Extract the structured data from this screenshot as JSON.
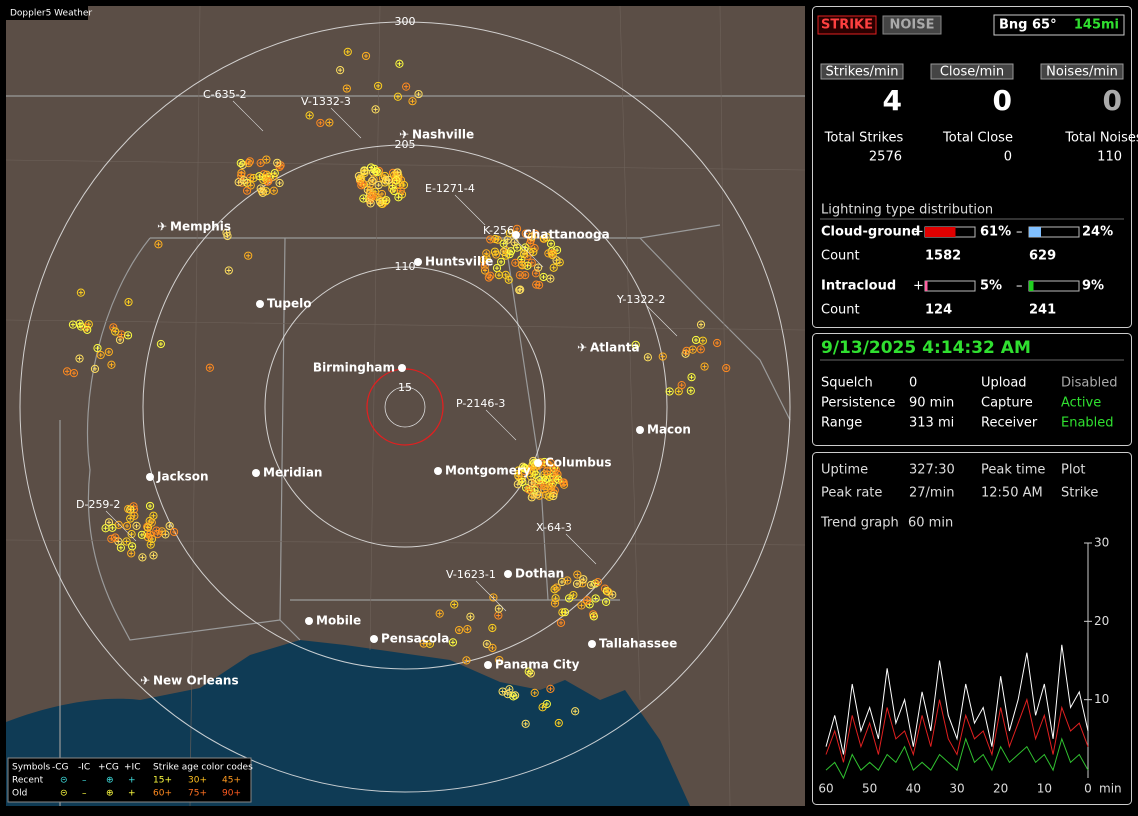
{
  "map": {
    "brand": "Doppler5 Weather",
    "rings": [
      "300",
      "205",
      "110",
      "15"
    ],
    "cities": [
      "Nashville",
      "Memphis",
      "Chattanooga",
      "Huntsville",
      "Tupelo",
      "Atlanta",
      "Birmingham",
      "Macon",
      "Columbus",
      "Jackson",
      "Meridian",
      "Montgomery",
      "Dothan",
      "Mobile",
      "Pensacola",
      "Tallahassee",
      "Panama City",
      "New Orleans"
    ],
    "storms": [
      "C-635-2",
      "V-1332-3",
      "E-1271-4",
      "K-256",
      "Y-1322-2",
      "P-2146-3",
      "X-64-3",
      "V-1623-1",
      "D-259-2"
    ],
    "legend": {
      "symbols": "Symbols",
      "types": [
        "-CG",
        "-IC",
        "+CG",
        "+IC"
      ],
      "age_title": "Strike age color codes",
      "recent": "Recent",
      "old": "Old",
      "recent_ages": [
        "15+",
        "30+",
        "45+"
      ],
      "old_ages": [
        "60+",
        "75+",
        "90+"
      ]
    }
  },
  "status": {
    "strike": "STRIKE",
    "noise": "NOISE",
    "bearing": "Bng 65°",
    "distance": "145mi",
    "rates": [
      {
        "label": "Strikes/min",
        "value": "4",
        "total_label": "Total Strikes",
        "total": "2576"
      },
      {
        "label": "Close/min",
        "value": "0",
        "total_label": "Total Close",
        "total": "0"
      },
      {
        "label": "Noises/min",
        "value": "0",
        "total_label": "Total Noises",
        "total": "110"
      }
    ],
    "distribution": {
      "title": "Lightning type distribution",
      "rows": [
        {
          "label": "Cloud-ground",
          "pos_sign": "+",
          "pos": {
            "value": 61,
            "label": "61%"
          },
          "neg_sign": "–",
          "neg": {
            "value": 24,
            "label": "24%"
          },
          "count_label": "Count",
          "pos_count": "1582",
          "neg_count": "629"
        },
        {
          "label": "Intracloud",
          "pos_sign": "+",
          "pos": {
            "value": 5,
            "label": "5%"
          },
          "neg_sign": "–",
          "neg": {
            "value": 9,
            "label": "9%"
          },
          "count_label": "Count",
          "pos_count": "124",
          "neg_count": "241"
        }
      ]
    }
  },
  "clock": {
    "datetime": "9/13/2025 4:14:32 AM",
    "rows": [
      [
        "Squelch",
        "0",
        "Upload",
        "Disabled"
      ],
      [
        "Persistence",
        "90 min",
        "Capture",
        "Active"
      ],
      [
        "Range",
        "313 mi",
        "Receiver",
        "Enabled"
      ]
    ]
  },
  "stats": {
    "rows": [
      [
        "Uptime",
        "327:30",
        "Peak time",
        "Plot"
      ],
      [
        "Peak rate",
        "27/min",
        "12:50 AM",
        "Strike"
      ]
    ],
    "trend_label": "Trend graph",
    "trend_span": "60 min"
  },
  "chart_data": {
    "type": "line",
    "x_label": "min",
    "x": [
      60,
      58,
      56,
      54,
      52,
      50,
      48,
      46,
      44,
      42,
      40,
      38,
      36,
      34,
      32,
      30,
      28,
      26,
      24,
      22,
      20,
      18,
      16,
      14,
      12,
      10,
      8,
      6,
      4,
      2,
      0
    ],
    "xlim": [
      60,
      0
    ],
    "xticks": [
      60,
      50,
      40,
      30,
      20,
      10,
      0
    ],
    "ylim": [
      0,
      30
    ],
    "yticks": [
      10,
      20,
      30
    ],
    "series": [
      {
        "color": "#ffffff",
        "values": [
          4,
          8,
          3,
          12,
          6,
          9,
          5,
          14,
          7,
          10,
          4,
          11,
          6,
          15,
          8,
          5,
          12,
          7,
          9,
          4,
          13,
          6,
          10,
          16,
          8,
          12,
          5,
          17,
          9,
          11,
          6
        ]
      },
      {
        "color": "#e02020",
        "values": [
          3,
          6,
          2,
          8,
          4,
          7,
          3,
          9,
          5,
          6,
          3,
          8,
          4,
          10,
          5,
          3,
          8,
          5,
          6,
          3,
          9,
          4,
          7,
          10,
          5,
          8,
          3,
          9,
          6,
          7,
          4
        ]
      },
      {
        "color": "#30c030",
        "values": [
          1,
          2,
          0,
          3,
          1,
          2,
          1,
          3,
          2,
          4,
          1,
          2,
          1,
          3,
          2,
          1,
          5,
          2,
          3,
          1,
          4,
          2,
          3,
          4,
          2,
          3,
          1,
          5,
          2,
          3,
          1
        ]
      }
    ]
  }
}
